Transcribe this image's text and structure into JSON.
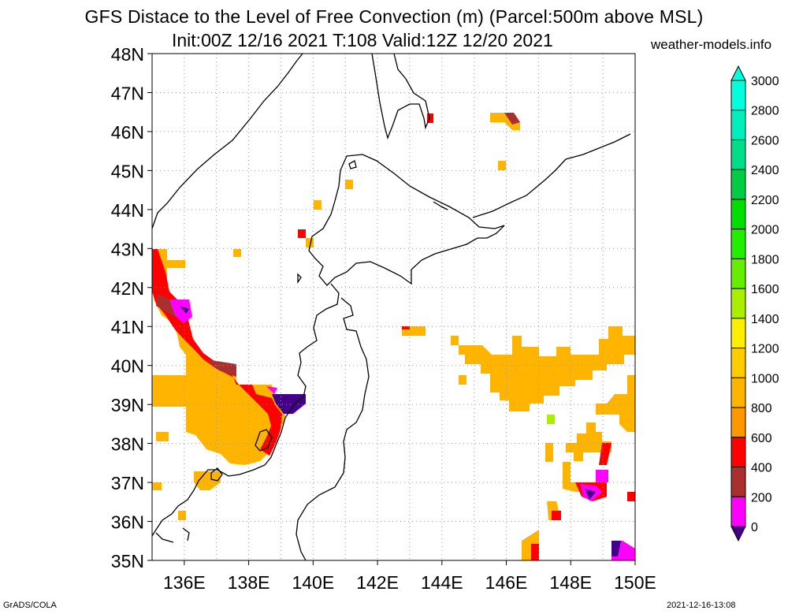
{
  "header": {
    "title": "GFS Distace to the Level of Free Convection (m) (Parcel:500m above MSL)",
    "subtitle": "Init:00Z 12/16 2021 T:108 Valid:12Z 12/20 2021",
    "site": "weather-models.info"
  },
  "footer": {
    "left": "GrADS/COLA",
    "right": "2021-12-16-13:08"
  },
  "map": {
    "lat_range": [
      35,
      48
    ],
    "lon_range": [
      135,
      150
    ],
    "lat_labels": [
      "48N",
      "47N",
      "46N",
      "45N",
      "44N",
      "43N",
      "42N",
      "41N",
      "40N",
      "39N",
      "38N",
      "37N",
      "36N",
      "35N"
    ],
    "lon_labels": [
      "136E",
      "138E",
      "140E",
      "142E",
      "144E",
      "146E",
      "148E",
      "150E"
    ],
    "grid": "dotted"
  },
  "colorbar": {
    "labels": [
      "3000",
      "2800",
      "2600",
      "2400",
      "2200",
      "2000",
      "1800",
      "1600",
      "1400",
      "1200",
      "1000",
      "800",
      "600",
      "400",
      "200",
      "0"
    ],
    "colors": [
      "#00ffdd",
      "#00eebb",
      "#00dd88",
      "#00cc44",
      "#00dd00",
      "#22ee00",
      "#66ee00",
      "#aaee00",
      "#ffee00",
      "#ffcc00",
      "#ffb400",
      "#ff9800",
      "#ff0000",
      "#aa3030",
      "#ff00ff",
      "#440088"
    ]
  }
}
